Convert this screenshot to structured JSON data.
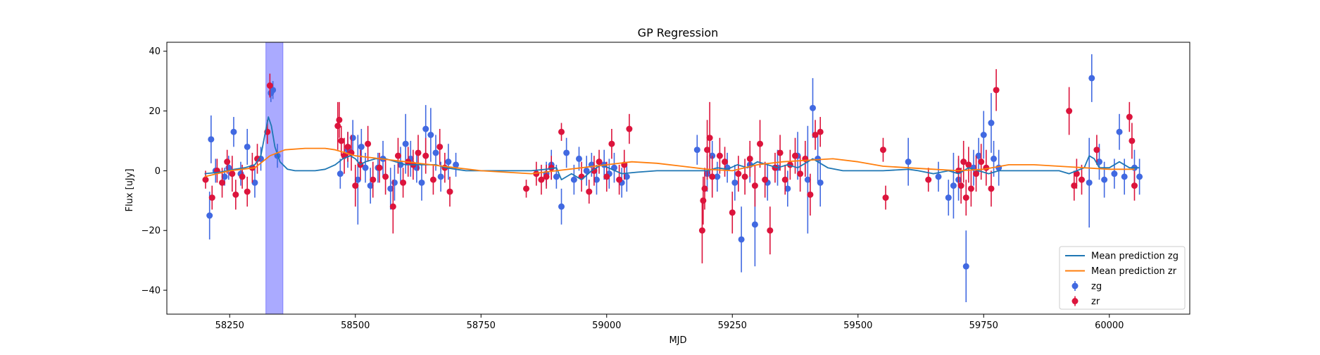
{
  "chart_data": {
    "type": "scatter",
    "title": "GP Regression",
    "xlabel": "MJD",
    "ylabel": "Flux [uJy]",
    "xlim": [
      58125,
      60160
    ],
    "ylim": [
      -48,
      43
    ],
    "xticks": [
      58250,
      58500,
      58750,
      59000,
      59250,
      59500,
      59750,
      60000
    ],
    "yticks": [
      -40,
      -20,
      0,
      20,
      40
    ],
    "grid": false,
    "legend_position": "lower-right",
    "shaded_region": {
      "x0": 58322,
      "x1": 58356,
      "color": "#aaaaff"
    },
    "series": [
      {
        "name": "Mean prediction zg",
        "kind": "line",
        "color": "#1f77b4",
        "x": [
          58200,
          58230,
          58260,
          58280,
          58300,
          58312,
          58320,
          58327,
          58333,
          58340,
          58350,
          58365,
          58380,
          58400,
          58420,
          58440,
          58460,
          58475,
          58490,
          58500,
          58510,
          58520,
          58540,
          58560,
          58580,
          58600,
          58620,
          58640,
          58660,
          58680,
          58700,
          58720,
          58750,
          58800,
          58850,
          58880,
          58900,
          58910,
          58930,
          58950,
          58970,
          58990,
          59010,
          59030,
          59060,
          59100,
          59150,
          59200,
          59220,
          59240,
          59260,
          59280,
          59300,
          59320,
          59340,
          59360,
          59380,
          59400,
          59410,
          59420,
          59440,
          59470,
          59500,
          59550,
          59600,
          59620,
          59650,
          59680,
          59700,
          59720,
          59740,
          59760,
          59780,
          59800,
          59850,
          59900,
          59920,
          59950,
          59960,
          59970,
          59980,
          60000,
          60020,
          60040,
          60060
        ],
        "y": [
          -1,
          -0.5,
          0.5,
          1,
          2,
          5,
          12,
          18,
          15,
          8,
          3,
          0.5,
          0,
          0,
          0,
          0.5,
          2,
          4,
          5,
          4,
          2,
          3,
          4,
          4,
          3,
          2,
          2,
          2,
          2,
          1,
          0.5,
          0,
          0,
          0,
          0,
          0.5,
          1,
          -3,
          -1,
          -3,
          0,
          2,
          0.5,
          -1,
          -0.5,
          0,
          0,
          0,
          1,
          0.5,
          2,
          1,
          3,
          2,
          1,
          2,
          1,
          3,
          4,
          3,
          1,
          0,
          0,
          0,
          0.5,
          0,
          -1,
          0,
          -1,
          1,
          0,
          -1,
          0,
          0,
          0,
          0,
          -1,
          1,
          5,
          4,
          1,
          1,
          3,
          1,
          1
        ]
      },
      {
        "name": "Mean prediction zr",
        "kind": "line",
        "color": "#ff7f0e",
        "x": [
          58200,
          58250,
          58300,
          58330,
          58360,
          58400,
          58440,
          58460,
          58480,
          58500,
          58550,
          58600,
          58650,
          58700,
          58750,
          58800,
          58850,
          58900,
          58950,
          59000,
          59050,
          59100,
          59150,
          59200,
          59250,
          59300,
          59350,
          59400,
          59450,
          59500,
          59550,
          59600,
          59650,
          59700,
          59750,
          59800,
          59850,
          59900,
          59950,
          60000,
          60050
        ],
        "y": [
          -2,
          0,
          1,
          5,
          7,
          7.5,
          7.5,
          7,
          6,
          5,
          4,
          3,
          2,
          1,
          0,
          -0.5,
          -1,
          0,
          1,
          2,
          3,
          2.5,
          1.5,
          0.5,
          0,
          2,
          3,
          3.5,
          4,
          3,
          1.5,
          1,
          0.5,
          0,
          0.5,
          2,
          2,
          1.5,
          1,
          0.5,
          0.5
        ]
      },
      {
        "name": "zg",
        "kind": "errorbar",
        "color": "#4169e1",
        "x": [
          58210,
          58213,
          58222,
          58240,
          58248,
          58258,
          58272,
          58285,
          58300,
          58312,
          58332,
          58336,
          58345,
          58470,
          58485,
          58495,
          58505,
          58512,
          58520,
          58530,
          58545,
          58555,
          58570,
          58578,
          58590,
          58600,
          58610,
          58622,
          58632,
          58640,
          58650,
          58660,
          58670,
          58685,
          58700,
          58880,
          58890,
          58900,
          58910,
          58920,
          58935,
          58945,
          58960,
          58970,
          58980,
          58995,
          59005,
          59015,
          59030,
          59040,
          59180,
          59200,
          59210,
          59220,
          59240,
          59255,
          59268,
          59285,
          59295,
          59320,
          59340,
          59360,
          59380,
          59400,
          59410,
          59420,
          59425,
          59600,
          59660,
          59680,
          59690,
          59700,
          59715,
          59730,
          59740,
          59750,
          59765,
          59770,
          59780,
          59960,
          59965,
          59980,
          59990,
          60010,
          60020,
          60030,
          60050,
          60060
        ],
        "y": [
          -15,
          10.5,
          0,
          -2,
          1,
          13,
          -1,
          8,
          -4,
          4,
          26,
          27,
          5,
          -1,
          7,
          11,
          -3,
          8,
          1,
          -5,
          1,
          4,
          -6,
          -4,
          2,
          9,
          4,
          1,
          -4,
          14,
          12,
          6,
          -2,
          3,
          2,
          -1,
          2,
          -2,
          -12,
          6,
          -3,
          4,
          0,
          2,
          -3,
          2,
          -1,
          1,
          -4,
          -2,
          7,
          -1,
          5,
          -2,
          1,
          -4,
          -23,
          2,
          -18,
          -4,
          1,
          -6,
          5,
          -3,
          21,
          4,
          -4,
          3,
          -2,
          -9,
          -5,
          -3,
          -32,
          1,
          5,
          12,
          16,
          4,
          1,
          -4,
          31,
          3,
          -3,
          -1,
          13,
          -2,
          1,
          -2
        ],
        "yerr": [
          8,
          8,
          4,
          3,
          4,
          5,
          4,
          6,
          5,
          4,
          3,
          3,
          4,
          5,
          6,
          6,
          15,
          6,
          5,
          6,
          5,
          6,
          7,
          6,
          6,
          10,
          6,
          5,
          6,
          8,
          9,
          6,
          5,
          6,
          4,
          4,
          5,
          4,
          6,
          5,
          5,
          4,
          5,
          4,
          5,
          5,
          5,
          5,
          5,
          5,
          5,
          6,
          5,
          5,
          5,
          6,
          11,
          6,
          14,
          6,
          6,
          6,
          8,
          18,
          10,
          8,
          8,
          8,
          5,
          6,
          11,
          7,
          12,
          6,
          6,
          8,
          10,
          6,
          6,
          15,
          8,
          6,
          6,
          5,
          6,
          6,
          6,
          6
        ]
      },
      {
        "name": "zr",
        "kind": "errorbar",
        "color": "#dc143c",
        "x": [
          58202,
          58215,
          58225,
          58235,
          58245,
          58255,
          58262,
          58275,
          58285,
          58295,
          58305,
          58325,
          58330,
          58465,
          58468,
          58472,
          58478,
          58485,
          58492,
          58500,
          58510,
          58525,
          58535,
          58548,
          58560,
          58575,
          58585,
          58595,
          58605,
          58615,
          58625,
          58640,
          58655,
          58668,
          58678,
          58688,
          58840,
          58860,
          58870,
          58880,
          58890,
          58910,
          58950,
          58965,
          58975,
          58985,
          59000,
          59010,
          59025,
          59035,
          59045,
          59190,
          59192,
          59195,
          59200,
          59205,
          59210,
          59225,
          59235,
          59250,
          59262,
          59275,
          59285,
          59295,
          59305,
          59315,
          59325,
          59335,
          59345,
          59355,
          59365,
          59375,
          59385,
          59395,
          59405,
          59415,
          59425,
          59550,
          59555,
          59640,
          59700,
          59705,
          59710,
          59715,
          59720,
          59725,
          59735,
          59745,
          59755,
          59765,
          59775,
          59920,
          59930,
          59935,
          59945,
          59975,
          60040,
          60045,
          60050
        ],
        "y": [
          -3,
          -9,
          0,
          -4,
          3,
          -1,
          -8,
          -2,
          -7,
          1,
          4,
          13,
          28.5,
          15,
          17,
          10,
          5,
          8,
          6,
          -5,
          2,
          9,
          -3,
          1,
          -2,
          -12,
          5,
          -4,
          3,
          2,
          6,
          5,
          -3,
          8,
          1,
          -7,
          -6,
          -1,
          -3,
          -2,
          1,
          13,
          -2,
          -7,
          0,
          3,
          -2,
          9,
          -3,
          2,
          14,
          -20,
          -10,
          -6,
          7,
          11,
          -2,
          5,
          3,
          -14,
          -1,
          -2,
          4,
          -5,
          9,
          -3,
          -20,
          1,
          6,
          -3,
          2,
          5,
          -1,
          4,
          -8,
          12,
          13,
          7,
          -9,
          -3,
          0,
          -5,
          3,
          -9,
          2,
          -6,
          -1,
          3,
          1,
          -6,
          27,
          20,
          -5,
          -1,
          -3,
          7,
          18,
          10,
          -5
        ],
        "yerr": [
          3,
          4,
          4,
          5,
          4,
          6,
          5,
          4,
          5,
          5,
          5,
          4,
          4,
          8,
          6,
          5,
          6,
          5,
          6,
          7,
          5,
          6,
          6,
          5,
          6,
          9,
          6,
          5,
          5,
          5,
          6,
          6,
          5,
          6,
          5,
          5,
          3,
          4,
          5,
          4,
          4,
          3,
          5,
          4,
          5,
          4,
          5,
          5,
          5,
          5,
          5,
          11,
          8,
          7,
          10,
          12,
          7,
          6,
          5,
          7,
          6,
          6,
          6,
          7,
          8,
          6,
          8,
          5,
          6,
          5,
          5,
          6,
          6,
          6,
          7,
          5,
          5,
          4,
          4,
          4,
          5,
          6,
          7,
          6,
          6,
          6,
          6,
          6,
          6,
          6,
          7,
          8,
          5,
          5,
          5,
          5,
          5,
          6,
          5
        ]
      }
    ]
  }
}
